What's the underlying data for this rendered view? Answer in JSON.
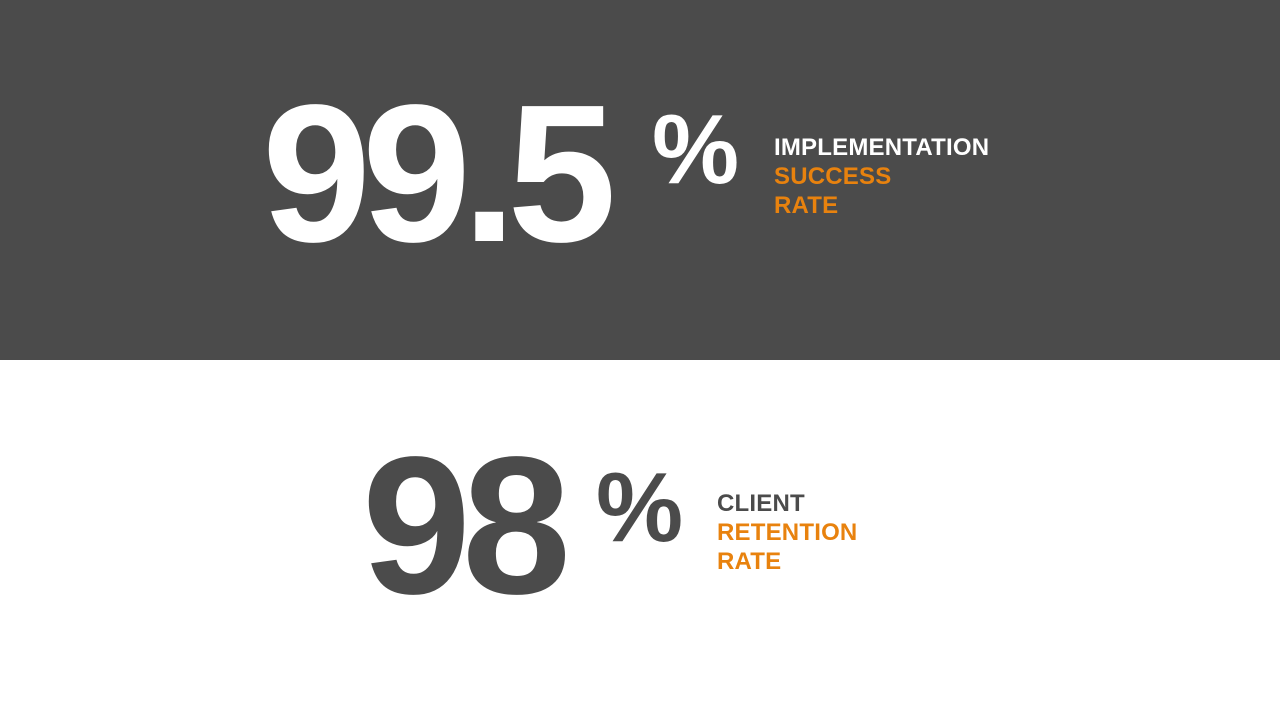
{
  "colors": {
    "dark": "#4b4b4b",
    "white": "#ffffff",
    "accent": "#e8820e"
  },
  "stats": [
    {
      "value": "99.5",
      "unit": "%",
      "label_lines": [
        "IMPLEMENTATION",
        "SUCCESS",
        "RATE"
      ]
    },
    {
      "value": "98",
      "unit": "%",
      "label_lines": [
        "CLIENT",
        "RETENTION",
        "RATE"
      ]
    }
  ]
}
